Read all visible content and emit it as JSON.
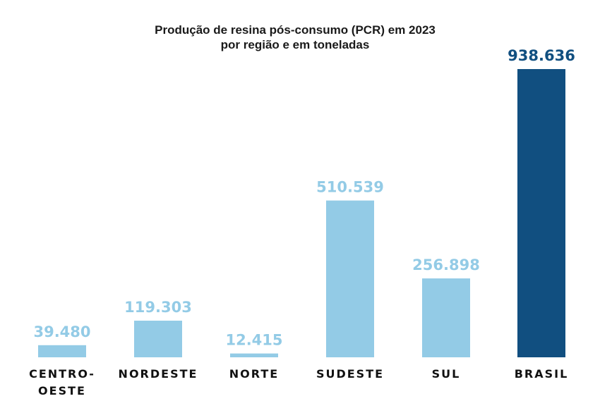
{
  "chart_data": {
    "type": "bar",
    "title_line1": "Produção de resina pós-consumo (PCR) em 2023",
    "title_line2": "por região e em toneladas",
    "categories": [
      {
        "lines": [
          "CENTRO-",
          "OESTE"
        ]
      },
      {
        "lines": [
          "NORDESTE"
        ]
      },
      {
        "lines": [
          "NORTE"
        ]
      },
      {
        "lines": [
          "SUDESTE"
        ]
      },
      {
        "lines": [
          "SUL"
        ]
      },
      {
        "lines": [
          "BRASIL"
        ]
      }
    ],
    "values": [
      39480,
      119303,
      12415,
      510539,
      256898,
      938636
    ],
    "value_labels": [
      "39.480",
      "119.303",
      "12.415",
      "510.539",
      "256.898",
      "938.636"
    ],
    "ylim": [
      0,
      938636
    ],
    "grid": false,
    "colors": {
      "region_bar": "#93cbe6",
      "region_label": "#93cbe6",
      "total_bar": "#114f80",
      "total_label": "#114f80"
    },
    "highlight_index": 5
  }
}
